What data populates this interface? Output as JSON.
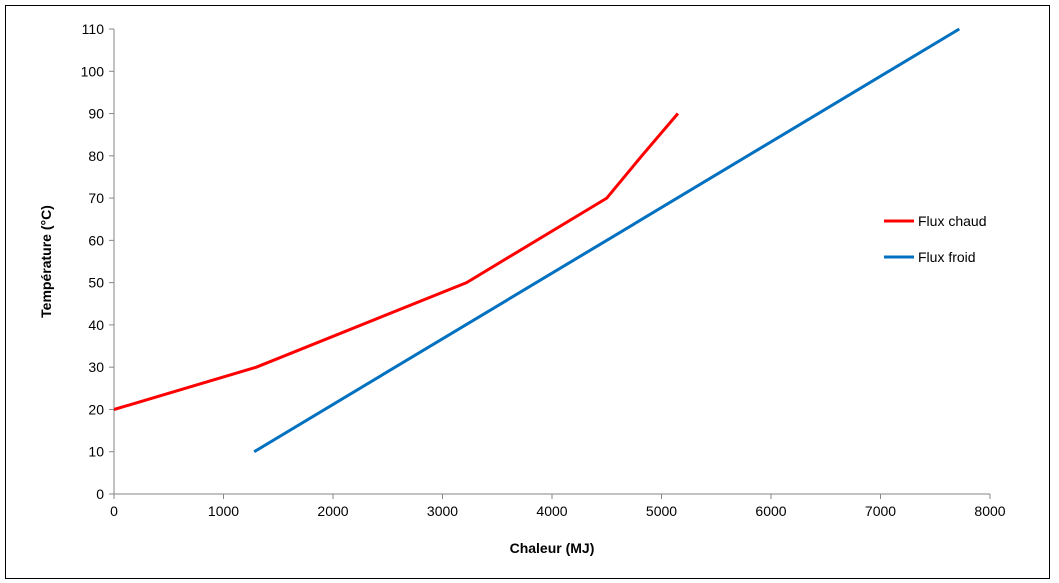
{
  "chart_data": {
    "type": "line",
    "title": "",
    "xlabel": "Chaleur (MJ)",
    "ylabel": "Température (°C)",
    "xlim": [
      0,
      8000
    ],
    "ylim": [
      0,
      110
    ],
    "x_ticks": [
      0,
      1000,
      2000,
      3000,
      4000,
      5000,
      6000,
      7000,
      8000
    ],
    "y_ticks": [
      0,
      10,
      20,
      30,
      40,
      50,
      60,
      70,
      80,
      90,
      100,
      110
    ],
    "grid": false,
    "legend_position": "right",
    "series": [
      {
        "name": "Flux chaud",
        "color": "#ff0000",
        "points": [
          [
            0,
            20
          ],
          [
            1300,
            30
          ],
          [
            3220,
            50
          ],
          [
            4500,
            70
          ],
          [
            4820,
            80
          ],
          [
            5150,
            90
          ]
        ]
      },
      {
        "name": "Flux froid",
        "color": "#0070c0",
        "points": [
          [
            1280,
            10
          ],
          [
            7720,
            110
          ]
        ]
      }
    ]
  }
}
